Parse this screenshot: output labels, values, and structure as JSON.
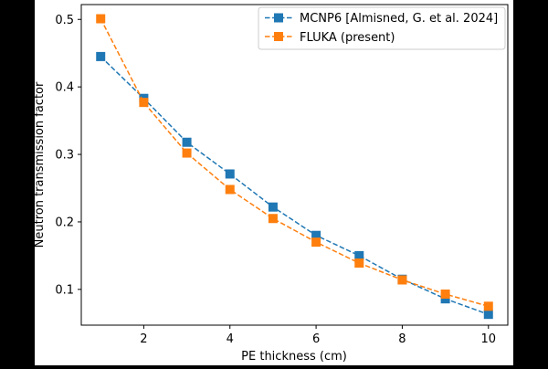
{
  "chart_data": {
    "type": "line",
    "xlabel": "PE thickness (cm)",
    "ylabel": "Neutron transmission factor",
    "xlim": [
      0.55,
      10.45
    ],
    "ylim": [
      0.047,
      0.522
    ],
    "xticks": [
      2,
      4,
      6,
      8,
      10
    ],
    "yticks": [
      0.1,
      0.2,
      0.3,
      0.4,
      0.5
    ],
    "xtick_labels": [
      "2",
      "4",
      "6",
      "8",
      "10"
    ],
    "ytick_labels": [
      "0.1",
      "0.2",
      "0.3",
      "0.4",
      "0.5"
    ],
    "grid": false,
    "legend_position": "top-right",
    "x": [
      1,
      2,
      3,
      4,
      5,
      6,
      7,
      8,
      9,
      10
    ],
    "series": [
      {
        "name": "MCNP6 [Almisned, G. et al. 2024]",
        "color": "#1f77b4",
        "marker": "square",
        "linestyle": "dashed",
        "values": [
          0.445,
          0.383,
          0.318,
          0.271,
          0.222,
          0.18,
          0.15,
          0.115,
          0.086,
          0.063
        ]
      },
      {
        "name": "FLUKA (present)",
        "color": "#ff7f0e",
        "marker": "square",
        "linestyle": "dashed",
        "values": [
          0.501,
          0.377,
          0.302,
          0.248,
          0.205,
          0.17,
          0.139,
          0.114,
          0.093,
          0.075
        ]
      }
    ]
  }
}
